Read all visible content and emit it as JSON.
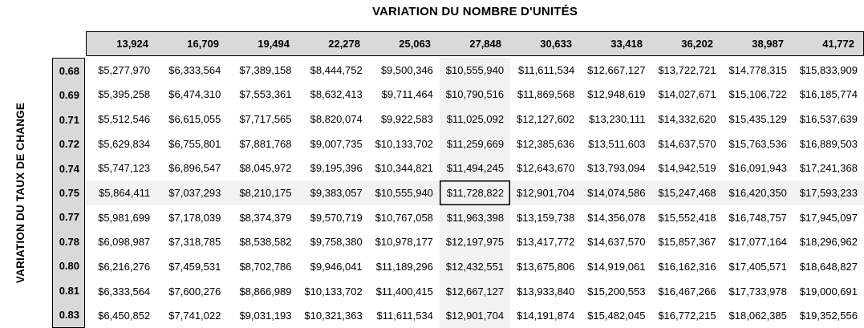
{
  "title": "VARIATION DU NOMBRE D'UNITÉS",
  "y_axis_label": "VARIATION DU TAUX DE CHANGE",
  "colors": {
    "header_bg": "#d9d9d9",
    "highlight_bg": "#f2f2f2",
    "border": "#000000",
    "text": "#000000"
  },
  "chart_data": {
    "type": "table",
    "title": "VARIATION DU NOMBRE D'UNITÉS",
    "row_axis_label": "VARIATION DU TAUX DE CHANGE",
    "column_headers": [
      "13,924",
      "16,709",
      "19,494",
      "22,278",
      "25,063",
      "27,848",
      "30,633",
      "33,418",
      "36,202",
      "38,987",
      "41,772"
    ],
    "row_headers": [
      "0.68",
      "0.69",
      "0.71",
      "0.72",
      "0.74",
      "0.75",
      "0.77",
      "0.78",
      "0.80",
      "0.81",
      "0.83"
    ],
    "rows": [
      [
        "$5,277,970",
        "$6,333,564",
        "$7,389,158",
        "$8,444,752",
        "$9,500,346",
        "$10,555,940",
        "$11,611,534",
        "$12,667,127",
        "$13,722,721",
        "$14,778,315",
        "$15,833,909"
      ],
      [
        "$5,395,258",
        "$6,474,310",
        "$7,553,361",
        "$8,632,413",
        "$9,711,464",
        "$10,790,516",
        "$11,869,568",
        "$12,948,619",
        "$14,027,671",
        "$15,106,722",
        "$16,185,774"
      ],
      [
        "$5,512,546",
        "$6,615,055",
        "$7,717,565",
        "$8,820,074",
        "$9,922,583",
        "$11,025,092",
        "$12,127,602",
        "$13,230,111",
        "$14,332,620",
        "$15,435,129",
        "$16,537,639"
      ],
      [
        "$5,629,834",
        "$6,755,801",
        "$7,881,768",
        "$9,007,735",
        "$10,133,702",
        "$11,259,669",
        "$12,385,636",
        "$13,511,603",
        "$14,637,570",
        "$15,763,536",
        "$16,889,503"
      ],
      [
        "$5,747,123",
        "$6,896,547",
        "$8,045,972",
        "$9,195,396",
        "$10,344,821",
        "$11,494,245",
        "$12,643,670",
        "$13,793,094",
        "$14,942,519",
        "$16,091,943",
        "$17,241,368"
      ],
      [
        "$5,864,411",
        "$7,037,293",
        "$8,210,175",
        "$9,383,057",
        "$10,555,940",
        "$11,728,822",
        "$12,901,704",
        "$14,074,586",
        "$15,247,468",
        "$16,420,350",
        "$17,593,233"
      ],
      [
        "$5,981,699",
        "$7,178,039",
        "$8,374,379",
        "$9,570,719",
        "$10,767,058",
        "$11,963,398",
        "$13,159,738",
        "$14,356,078",
        "$15,552,418",
        "$16,748,757",
        "$17,945,097"
      ],
      [
        "$6,098,987",
        "$7,318,785",
        "$8,538,582",
        "$9,758,380",
        "$10,978,177",
        "$12,197,975",
        "$13,417,772",
        "$14,637,570",
        "$15,857,367",
        "$17,077,164",
        "$18,296,962"
      ],
      [
        "$6,216,276",
        "$7,459,531",
        "$8,702,786",
        "$9,946,041",
        "$11,189,296",
        "$12,432,551",
        "$13,675,806",
        "$14,919,061",
        "$16,162,316",
        "$17,405,571",
        "$18,648,827"
      ],
      [
        "$6,333,564",
        "$7,600,276",
        "$8,866,989",
        "$10,133,702",
        "$11,400,415",
        "$12,667,127",
        "$13,933,840",
        "$15,200,553",
        "$16,467,266",
        "$17,733,978",
        "$19,000,691"
      ],
      [
        "$6,450,852",
        "$7,741,022",
        "$9,031,193",
        "$10,321,363",
        "$11,611,534",
        "$12,901,704",
        "$14,191,874",
        "$15,482,045",
        "$16,772,215",
        "$18,062,385",
        "$19,352,556"
      ]
    ],
    "highlight": {
      "column_label": "27,848",
      "column_index": 5,
      "row_label": "0.75",
      "row_index": 5,
      "selected_cell_value": "$11,728,822"
    }
  }
}
